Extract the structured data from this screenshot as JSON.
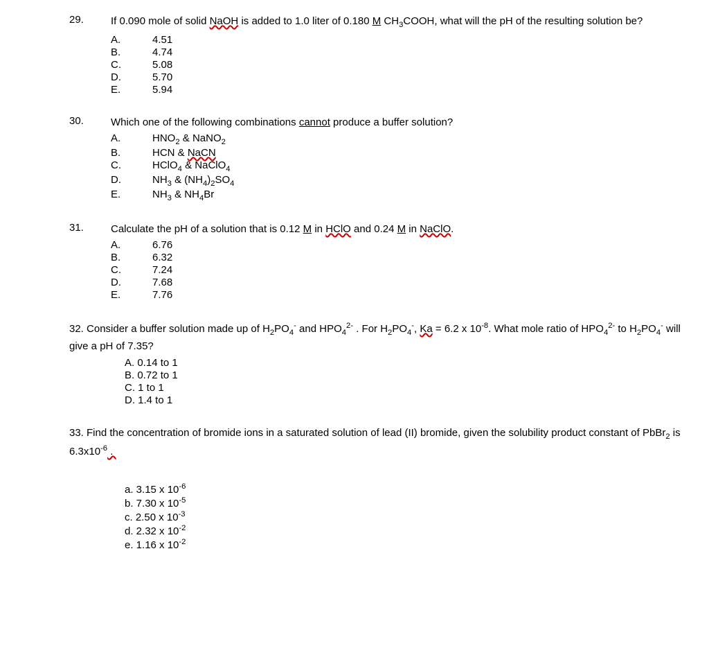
{
  "q29": {
    "number": "29.",
    "options": [
      {
        "letter": "A.",
        "value": "4.51"
      },
      {
        "letter": "B.",
        "value": "4.74"
      },
      {
        "letter": "C.",
        "value": "5.08"
      },
      {
        "letter": "D.",
        "value": "5.70"
      },
      {
        "letter": "E.",
        "value": "5.94"
      }
    ]
  },
  "q30": {
    "number": "30.",
    "optLetters": [
      "A.",
      "B.",
      "C.",
      "D.",
      "E."
    ]
  },
  "q31": {
    "number": "31.",
    "options": [
      {
        "letter": "A.",
        "value": "6.76"
      },
      {
        "letter": "B.",
        "value": "6.32"
      },
      {
        "letter": "C.",
        "value": "7.24"
      },
      {
        "letter": "D.",
        "value": "7.68"
      },
      {
        "letter": "E.",
        "value": "7.76"
      }
    ]
  },
  "q32": {
    "options": [
      "A. 0.14 to 1",
      "B. 0.72 to 1",
      "C. 1 to 1",
      "D. 1.4 to 1"
    ]
  },
  "q33": {
    "optLetters": [
      "a.",
      "b.",
      "c.",
      "d.",
      "e."
    ]
  }
}
